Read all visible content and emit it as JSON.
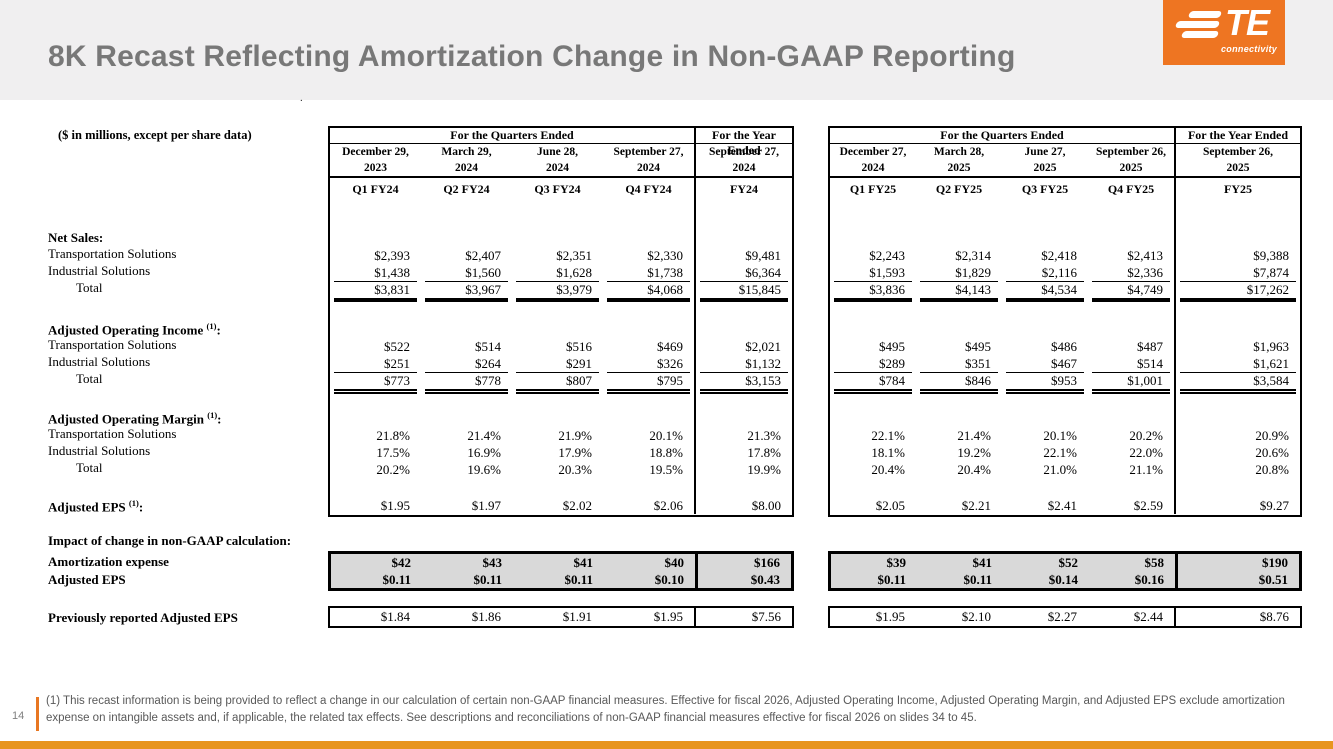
{
  "header": {
    "title": "8K Recast Reflecting Amortization Change in Non-GAAP Reporting"
  },
  "logo": {
    "te": "TE",
    "connectivity": "connectivity"
  },
  "colors": {
    "te_orange": "#EE7522",
    "accent_bar_orange": "#E87722",
    "bottom_bar_orange": "#E8951E",
    "band_gray": "#F0EFF0",
    "title_gray": "#787878",
    "impact_box_gray": "#D9D9D9"
  },
  "units_note": "($ in millions, except per share data)",
  "stray_dot": ".",
  "row_labels": {
    "net_sales": "Net Sales:",
    "transportation": "Transportation Solutions",
    "industrial": "Industrial Solutions",
    "total": "Total",
    "aoi": {
      "text": "Adjusted Operating Income ",
      "sup": "(1)",
      "colon": ":"
    },
    "aom": {
      "text": "Adjusted Operating Margin ",
      "sup": "(1)",
      "colon": ":"
    },
    "eps": {
      "text": "Adjusted EPS ",
      "sup": "(1)",
      "colon": ":"
    },
    "impact": "Impact of change in non-GAAP calculation:",
    "amortization": "Amortization expense",
    "impact_eps": "Adjusted EPS",
    "previously_reported": "Previously reported Adjusted EPS"
  },
  "tables": [
    {
      "id": "FY24",
      "quarters_header": "For the Quarters Ended",
      "year_header": "For the Year Ended",
      "dates": [
        "December 29,\n2023",
        "March 29,\n2024",
        "June 28,\n2024",
        "September 27,\n2024",
        "September 27,\n2024"
      ],
      "q_labels": [
        "Q1 FY24",
        "Q2 FY24",
        "Q3 FY24",
        "Q4 FY24",
        "FY24"
      ],
      "net_sales_ts": [
        "$2,393",
        "$2,407",
        "$2,351",
        "$2,330",
        "$9,481"
      ],
      "net_sales_is": [
        "$1,438",
        "$1,560",
        "$1,628",
        "$1,738",
        "$6,364"
      ],
      "net_sales_total": [
        "$3,831",
        "$3,967",
        "$3,979",
        "$4,068",
        "$15,845"
      ],
      "aoi_ts": [
        "$522",
        "$514",
        "$516",
        "$469",
        "$2,021"
      ],
      "aoi_is": [
        "$251",
        "$264",
        "$291",
        "$326",
        "$1,132"
      ],
      "aoi_total": [
        "$773",
        "$778",
        "$807",
        "$795",
        "$3,153"
      ],
      "aom_ts": [
        "21.8%",
        "21.4%",
        "21.9%",
        "20.1%",
        "21.3%"
      ],
      "aom_is": [
        "17.5%",
        "16.9%",
        "17.9%",
        "18.8%",
        "17.8%"
      ],
      "aom_total": [
        "20.2%",
        "19.6%",
        "20.3%",
        "19.5%",
        "19.9%"
      ],
      "eps": [
        "$1.95",
        "$1.97",
        "$2.02",
        "$2.06",
        "$8.00"
      ],
      "amort": [
        "$42",
        "$43",
        "$41",
        "$40",
        "$166"
      ],
      "impact_eps": [
        "$0.11",
        "$0.11",
        "$0.11",
        "$0.10",
        "$0.43"
      ],
      "prev_eps": [
        "$1.84",
        "$1.86",
        "$1.91",
        "$1.95",
        "$7.56"
      ]
    },
    {
      "id": "FY25",
      "quarters_header": "For the Quarters Ended",
      "year_header": "For the Year Ended",
      "dates": [
        "December 27,\n2024",
        "March 28,\n2025",
        "June 27,\n2025",
        "September 26,\n2025",
        "September 26,\n2025"
      ],
      "q_labels": [
        "Q1 FY25",
        "Q2 FY25",
        "Q3 FY25",
        "Q4 FY25",
        "FY25"
      ],
      "net_sales_ts": [
        "$2,243",
        "$2,314",
        "$2,418",
        "$2,413",
        "$9,388"
      ],
      "net_sales_is": [
        "$1,593",
        "$1,829",
        "$2,116",
        "$2,336",
        "$7,874"
      ],
      "net_sales_total": [
        "$3,836",
        "$4,143",
        "$4,534",
        "$4,749",
        "$17,262"
      ],
      "aoi_ts": [
        "$495",
        "$495",
        "$486",
        "$487",
        "$1,963"
      ],
      "aoi_is": [
        "$289",
        "$351",
        "$467",
        "$514",
        "$1,621"
      ],
      "aoi_total": [
        "$784",
        "$846",
        "$953",
        "$1,001",
        "$3,584"
      ],
      "aom_ts": [
        "22.1%",
        "21.4%",
        "20.1%",
        "20.2%",
        "20.9%"
      ],
      "aom_is": [
        "18.1%",
        "19.2%",
        "22.1%",
        "22.0%",
        "20.6%"
      ],
      "aom_total": [
        "20.4%",
        "20.4%",
        "21.0%",
        "21.1%",
        "20.8%"
      ],
      "eps": [
        "$2.05",
        "$2.21",
        "$2.41",
        "$2.59",
        "$9.27"
      ],
      "amort": [
        "$39",
        "$41",
        "$52",
        "$58",
        "$190"
      ],
      "impact_eps": [
        "$0.11",
        "$0.11",
        "$0.14",
        "$0.16",
        "$0.51"
      ],
      "prev_eps": [
        "$1.95",
        "$2.10",
        "$2.27",
        "$2.44",
        "$8.76"
      ]
    }
  ],
  "footnote": "(1) This recast information is being provided to reflect a change in our calculation of certain non-GAAP financial measures. Effective for fiscal 2026, Adjusted Operating Income, Adjusted Operating Margin, and Adjusted EPS exclude amortization expense on intangible assets and, if applicable, the related tax effects. See descriptions and reconciliations of non-GAAP financial measures effective for fiscal 2026 on slides 34 to 45.",
  "page_number": "14"
}
